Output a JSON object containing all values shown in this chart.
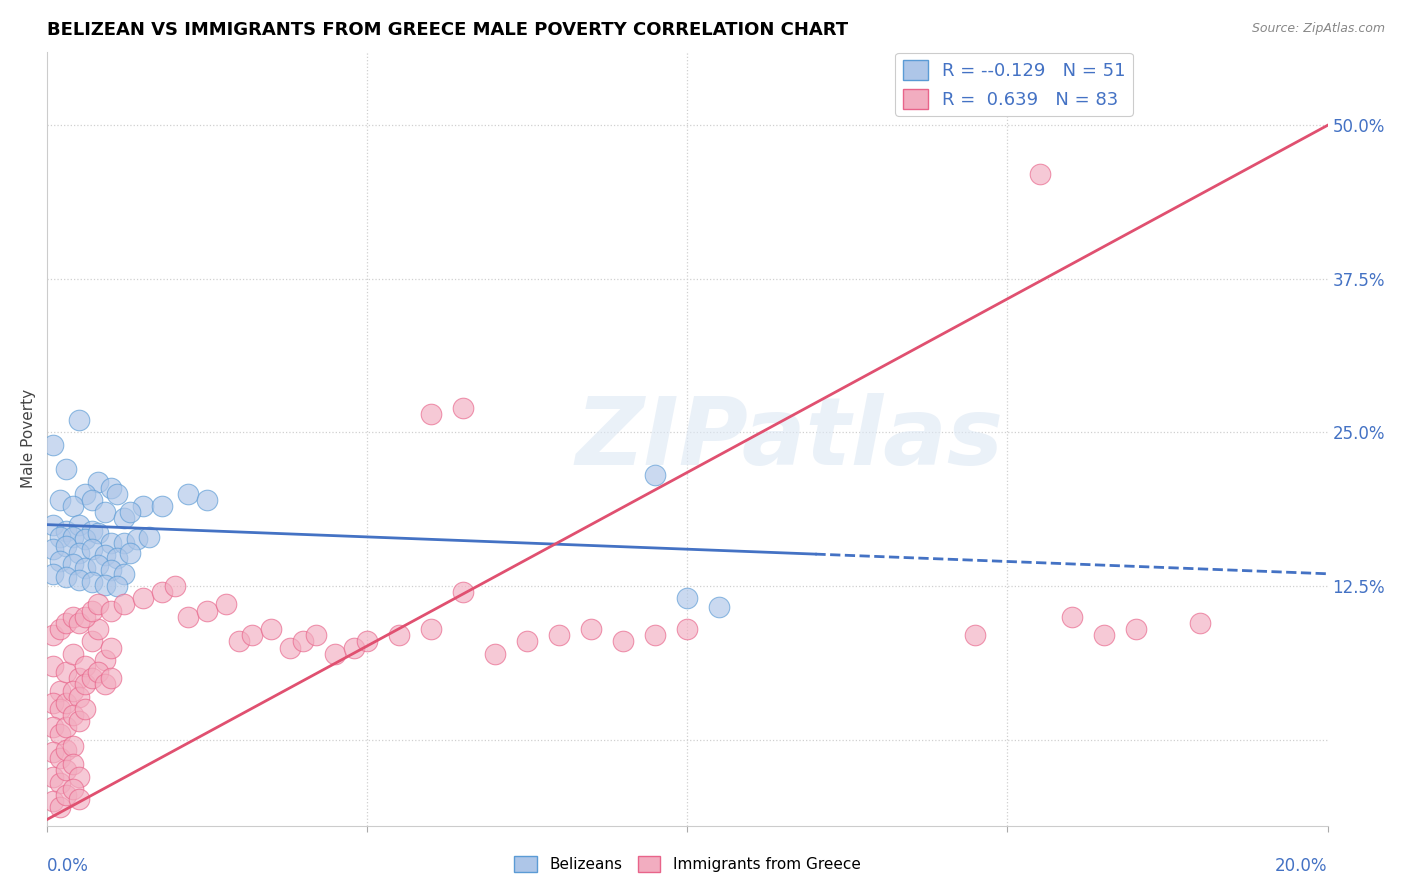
{
  "title": "BELIZEAN VS IMMIGRANTS FROM GREECE MALE POVERTY CORRELATION CHART",
  "source": "Source: ZipAtlas.com",
  "ylabel": "Male Poverty",
  "right_yticks": [
    0.0,
    0.125,
    0.25,
    0.375,
    0.5
  ],
  "right_yticklabels": [
    "",
    "12.5%",
    "25.0%",
    "37.5%",
    "50.0%"
  ],
  "xlim": [
    0.0,
    0.2
  ],
  "ylim": [
    -0.07,
    0.56
  ],
  "legend_r1": "-0.129",
  "legend_n1": "51",
  "legend_r2": "0.639",
  "legend_n2": "83",
  "blue_color": "#aec6e8",
  "pink_color": "#f2adc0",
  "blue_edge_color": "#5b9bd5",
  "pink_edge_color": "#e8648a",
  "blue_line_color": "#4472c4",
  "pink_line_color": "#e05070",
  "watermark_text": "ZIPatlas",
  "blue_scatter": [
    [
      0.001,
      0.24
    ],
    [
      0.005,
      0.26
    ],
    [
      0.008,
      0.21
    ],
    [
      0.003,
      0.22
    ],
    [
      0.006,
      0.2
    ],
    [
      0.01,
      0.205
    ],
    [
      0.002,
      0.195
    ],
    [
      0.004,
      0.19
    ],
    [
      0.007,
      0.195
    ],
    [
      0.009,
      0.185
    ],
    [
      0.011,
      0.2
    ],
    [
      0.012,
      0.18
    ],
    [
      0.015,
      0.19
    ],
    [
      0.013,
      0.185
    ],
    [
      0.018,
      0.19
    ],
    [
      0.001,
      0.175
    ],
    [
      0.003,
      0.17
    ],
    [
      0.005,
      0.175
    ],
    [
      0.007,
      0.17
    ],
    [
      0.002,
      0.165
    ],
    [
      0.004,
      0.165
    ],
    [
      0.006,
      0.163
    ],
    [
      0.008,
      0.168
    ],
    [
      0.01,
      0.16
    ],
    [
      0.012,
      0.16
    ],
    [
      0.014,
      0.163
    ],
    [
      0.016,
      0.165
    ],
    [
      0.001,
      0.155
    ],
    [
      0.003,
      0.158
    ],
    [
      0.005,
      0.152
    ],
    [
      0.007,
      0.155
    ],
    [
      0.009,
      0.15
    ],
    [
      0.011,
      0.148
    ],
    [
      0.013,
      0.152
    ],
    [
      0.002,
      0.145
    ],
    [
      0.004,
      0.143
    ],
    [
      0.006,
      0.14
    ],
    [
      0.008,
      0.142
    ],
    [
      0.01,
      0.138
    ],
    [
      0.012,
      0.135
    ],
    [
      0.001,
      0.135
    ],
    [
      0.003,
      0.132
    ],
    [
      0.005,
      0.13
    ],
    [
      0.007,
      0.128
    ],
    [
      0.009,
      0.126
    ],
    [
      0.011,
      0.125
    ],
    [
      0.022,
      0.2
    ],
    [
      0.025,
      0.195
    ],
    [
      0.095,
      0.215
    ],
    [
      0.1,
      0.115
    ],
    [
      0.105,
      0.108
    ]
  ],
  "pink_scatter": [
    [
      0.001,
      0.06
    ],
    [
      0.002,
      0.04
    ],
    [
      0.003,
      0.055
    ],
    [
      0.004,
      0.07
    ],
    [
      0.005,
      0.05
    ],
    [
      0.006,
      0.06
    ],
    [
      0.007,
      0.08
    ],
    [
      0.008,
      0.09
    ],
    [
      0.009,
      0.065
    ],
    [
      0.01,
      0.075
    ],
    [
      0.001,
      0.03
    ],
    [
      0.002,
      0.025
    ],
    [
      0.003,
      0.03
    ],
    [
      0.004,
      0.04
    ],
    [
      0.005,
      0.035
    ],
    [
      0.006,
      0.045
    ],
    [
      0.007,
      0.05
    ],
    [
      0.008,
      0.055
    ],
    [
      0.009,
      0.045
    ],
    [
      0.01,
      0.05
    ],
    [
      0.001,
      0.01
    ],
    [
      0.002,
      0.005
    ],
    [
      0.003,
      0.01
    ],
    [
      0.004,
      0.02
    ],
    [
      0.005,
      0.015
    ],
    [
      0.006,
      0.025
    ],
    [
      0.001,
      -0.01
    ],
    [
      0.002,
      -0.015
    ],
    [
      0.003,
      -0.008
    ],
    [
      0.004,
      -0.005
    ],
    [
      0.001,
      -0.03
    ],
    [
      0.002,
      -0.035
    ],
    [
      0.003,
      -0.025
    ],
    [
      0.004,
      -0.02
    ],
    [
      0.005,
      -0.03
    ],
    [
      0.001,
      -0.05
    ],
    [
      0.002,
      -0.055
    ],
    [
      0.003,
      -0.045
    ],
    [
      0.004,
      -0.04
    ],
    [
      0.005,
      -0.048
    ],
    [
      0.001,
      0.085
    ],
    [
      0.002,
      0.09
    ],
    [
      0.003,
      0.095
    ],
    [
      0.004,
      0.1
    ],
    [
      0.005,
      0.095
    ],
    [
      0.006,
      0.1
    ],
    [
      0.007,
      0.105
    ],
    [
      0.008,
      0.11
    ],
    [
      0.01,
      0.105
    ],
    [
      0.012,
      0.11
    ],
    [
      0.015,
      0.115
    ],
    [
      0.018,
      0.12
    ],
    [
      0.02,
      0.125
    ],
    [
      0.022,
      0.1
    ],
    [
      0.025,
      0.105
    ],
    [
      0.028,
      0.11
    ],
    [
      0.03,
      0.08
    ],
    [
      0.032,
      0.085
    ],
    [
      0.035,
      0.09
    ],
    [
      0.038,
      0.075
    ],
    [
      0.04,
      0.08
    ],
    [
      0.042,
      0.085
    ],
    [
      0.045,
      0.07
    ],
    [
      0.048,
      0.075
    ],
    [
      0.05,
      0.08
    ],
    [
      0.055,
      0.085
    ],
    [
      0.06,
      0.09
    ],
    [
      0.065,
      0.12
    ],
    [
      0.07,
      0.07
    ],
    [
      0.075,
      0.08
    ],
    [
      0.08,
      0.085
    ],
    [
      0.085,
      0.09
    ],
    [
      0.09,
      0.08
    ],
    [
      0.095,
      0.085
    ],
    [
      0.1,
      0.09
    ],
    [
      0.06,
      0.265
    ],
    [
      0.065,
      0.27
    ],
    [
      0.155,
      0.46
    ],
    [
      0.145,
      0.085
    ],
    [
      0.16,
      0.1
    ],
    [
      0.165,
      0.085
    ],
    [
      0.17,
      0.09
    ],
    [
      0.18,
      0.095
    ]
  ],
  "blue_trendline": [
    [
      0.0,
      0.175
    ],
    [
      0.2,
      0.135
    ]
  ],
  "pink_trendline": [
    [
      0.0,
      -0.065
    ],
    [
      0.2,
      0.5
    ]
  ],
  "blue_trendline_dashed_from": 0.12,
  "gridline_color": "#d0d0d0",
  "gridline_style": ":",
  "spine_color": "#cccccc"
}
